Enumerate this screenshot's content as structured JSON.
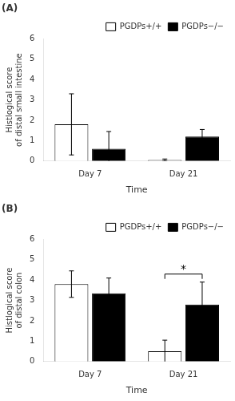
{
  "chart_data": [
    {
      "type": "bar",
      "title": "(A)",
      "y_label": "Histlogical score\nof distal small intestine",
      "x_label": "Time",
      "categories": [
        "Day 7",
        "Day 21"
      ],
      "series": [
        {
          "name": "PGDPs+/+",
          "color": "white",
          "values": [
            1.8,
            0.05
          ],
          "errors": [
            1.5,
            0.05
          ]
        },
        {
          "name": "PGDPs−/−",
          "color": "black",
          "values": [
            0.6,
            1.2
          ],
          "errors": [
            0.85,
            0.35
          ]
        }
      ],
      "ylim": [
        0,
        6
      ],
      "yticks": [
        0,
        1,
        2,
        3,
        4,
        5,
        6
      ],
      "grid": false,
      "legend": "upper right"
    },
    {
      "type": "bar",
      "title": "(B)",
      "y_label": "Histlogical score\nof distal colon",
      "x_label": "Time",
      "categories": [
        "Day 7",
        "Day 21"
      ],
      "series": [
        {
          "name": "PGDPs+/+",
          "color": "white",
          "values": [
            3.8,
            0.5
          ],
          "errors": [
            0.65,
            0.55
          ]
        },
        {
          "name": "PGDPs−/−",
          "color": "black",
          "values": [
            3.35,
            2.8
          ],
          "errors": [
            0.75,
            1.1
          ]
        }
      ],
      "ylim": [
        0,
        6
      ],
      "yticks": [
        0,
        1,
        2,
        3,
        4,
        5,
        6
      ],
      "grid": false,
      "legend": "upper right",
      "annotations": [
        {
          "text": "*",
          "category": "Day 21"
        }
      ]
    }
  ]
}
